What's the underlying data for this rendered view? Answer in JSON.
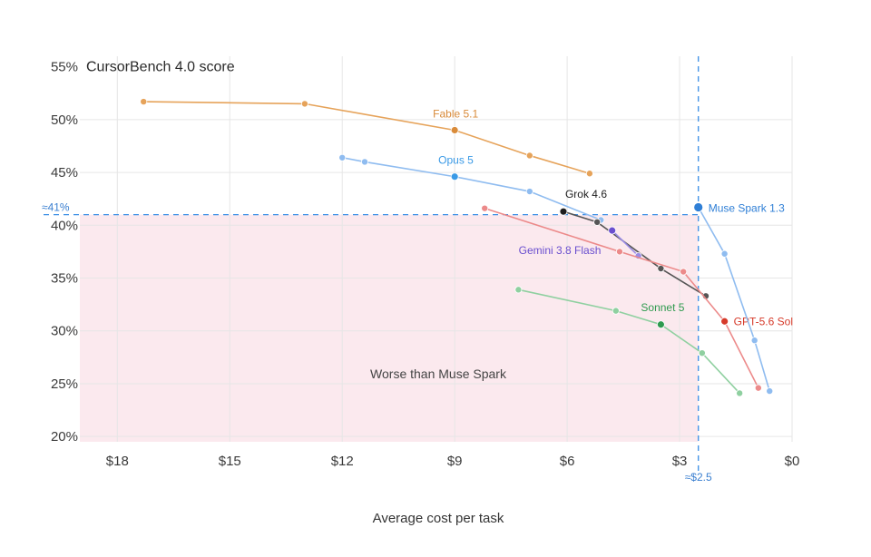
{
  "chart_data": {
    "type": "line",
    "title": "CursorBench 4.0 score",
    "xlabel": "Average cost per task",
    "ylabel": "",
    "x_axis": {
      "reversed": true,
      "range": [
        0,
        19
      ],
      "ticks": [
        18,
        15,
        12,
        9,
        6,
        3,
        0
      ],
      "tick_labels": [
        "$18",
        "$15",
        "$12",
        "$9",
        "$6",
        "$3",
        "$0"
      ]
    },
    "y_axis": {
      "range": [
        19.5,
        56
      ],
      "ticks": [
        20,
        25,
        30,
        35,
        40,
        45,
        50,
        55
      ],
      "tick_labels": [
        "20%",
        "25%",
        "30%",
        "35%",
        "40%",
        "45%",
        "50%",
        "55%"
      ]
    },
    "grid": true,
    "region": {
      "label": "Worse than Muse Spark",
      "x_min": 2.5,
      "x_max": 19,
      "y_min": 19.5,
      "y_max": 41,
      "color": "#fbe9ee"
    },
    "reference_lines": {
      "x": {
        "value": 2.5,
        "label": "≈$2.5"
      },
      "y": {
        "value": 41,
        "label": "≈41%"
      },
      "color": "#3a8ee6"
    },
    "series": [
      {
        "name": "Fable 5.1",
        "color": "#e6a35a",
        "label_color": "#d98b3a",
        "points": [
          [
            17.3,
            51.7
          ],
          [
            13.0,
            51.5
          ],
          [
            9.0,
            49.0
          ],
          [
            7.0,
            46.6
          ],
          [
            5.4,
            44.9
          ]
        ],
        "key_index": 2
      },
      {
        "name": "Opus 5",
        "color": "#8fbcf0",
        "label_color": "#3a9ae6",
        "points": [
          [
            12.0,
            46.4
          ],
          [
            11.4,
            46.0
          ],
          [
            9.0,
            44.6
          ],
          [
            7.0,
            43.2
          ],
          [
            5.1,
            40.5
          ]
        ],
        "key_index": 2
      },
      {
        "name": "Grok 4.6",
        "color": "#555555",
        "label_color": "#1e1e1e",
        "points": [
          [
            6.1,
            41.3
          ],
          [
            5.2,
            40.3
          ],
          [
            3.5,
            35.9
          ],
          [
            2.3,
            33.3
          ]
        ],
        "key_index": 0
      },
      {
        "name": "Gemini 3.8 Flash",
        "color": "#9a8ce6",
        "label_color": "#6a4fcf",
        "points": [
          [
            4.8,
            39.5
          ],
          [
            4.1,
            37.1
          ]
        ],
        "key_index": 0
      },
      {
        "name": "GPT-5.6 Sol",
        "color": "#ec8a8a",
        "label_color": "#d63a2a",
        "points": [
          [
            8.2,
            41.6
          ],
          [
            4.6,
            37.5
          ],
          [
            2.9,
            35.6
          ],
          [
            1.8,
            30.9
          ],
          [
            0.9,
            24.6
          ]
        ],
        "key_index": 3
      },
      {
        "name": "Sonnet 5",
        "color": "#8fd0a0",
        "label_color": "#2f9a4f",
        "points": [
          [
            7.3,
            33.9
          ],
          [
            4.7,
            31.9
          ],
          [
            3.5,
            30.6
          ],
          [
            2.4,
            27.9
          ],
          [
            1.4,
            24.1
          ]
        ],
        "key_index": 2
      },
      {
        "name": "Muse Spark 1.3",
        "color": "#8fbcf0",
        "label_color": "#2f7fd6",
        "points": [
          [
            2.5,
            41.7
          ],
          [
            1.8,
            37.3
          ],
          [
            1.0,
            29.1
          ],
          [
            0.6,
            24.3
          ]
        ],
        "key_index": 0
      }
    ]
  }
}
